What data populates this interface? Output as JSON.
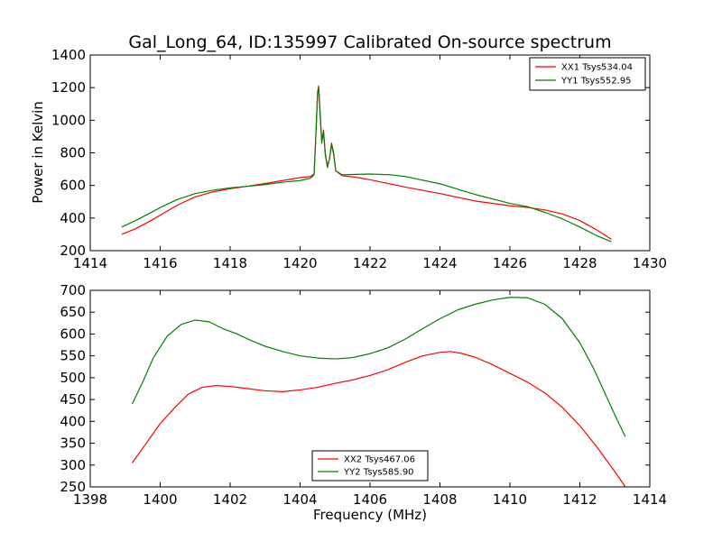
{
  "title": "Gal_Long_64, ID:135997 Calibrated On-source spectrum",
  "shared_xlabel": "Frequency (MHz)",
  "colors": {
    "red": "#ff0000",
    "green": "#008000"
  },
  "chart_data": [
    {
      "type": "line",
      "panel": "top",
      "ylabel": "Power in Kelvin",
      "xlim": [
        1414,
        1430
      ],
      "ylim": [
        200,
        1400
      ],
      "xticks": [
        "1414",
        "1416",
        "1418",
        "1420",
        "1422",
        "1424",
        "1426",
        "1428",
        "1430"
      ],
      "yticks": [
        "200",
        "400",
        "600",
        "800",
        "1000",
        "1200",
        "1400"
      ],
      "legend_position": "top-right",
      "series": [
        {
          "name": "XX1 Tsys534.04",
          "color": "#ff0000",
          "points": [
            [
              1414.9,
              300
            ],
            [
              1415.3,
              335
            ],
            [
              1415.7,
              380
            ],
            [
              1416.1,
              430
            ],
            [
              1416.5,
              480
            ],
            [
              1417.0,
              530
            ],
            [
              1417.5,
              560
            ],
            [
              1418.0,
              580
            ],
            [
              1418.5,
              595
            ],
            [
              1419.0,
              612
            ],
            [
              1419.5,
              630
            ],
            [
              1420.0,
              648
            ],
            [
              1420.3,
              655
            ],
            [
              1420.4,
              670
            ],
            [
              1420.45,
              900
            ],
            [
              1420.5,
              1170
            ],
            [
              1420.53,
              1210
            ],
            [
              1420.57,
              1060
            ],
            [
              1420.62,
              870
            ],
            [
              1420.67,
              940
            ],
            [
              1420.72,
              800
            ],
            [
              1420.78,
              720
            ],
            [
              1420.84,
              760
            ],
            [
              1420.9,
              860
            ],
            [
              1420.96,
              800
            ],
            [
              1421.02,
              690
            ],
            [
              1421.2,
              660
            ],
            [
              1421.6,
              650
            ],
            [
              1422.0,
              635
            ],
            [
              1423.0,
              590
            ],
            [
              1424.0,
              550
            ],
            [
              1425.0,
              505
            ],
            [
              1426.0,
              475
            ],
            [
              1426.5,
              465
            ],
            [
              1427.0,
              450
            ],
            [
              1427.5,
              425
            ],
            [
              1428.0,
              385
            ],
            [
              1428.5,
              325
            ],
            [
              1428.9,
              270
            ]
          ]
        },
        {
          "name": "YY1 Tsys552.95",
          "color": "#008000",
          "points": [
            [
              1414.9,
              345
            ],
            [
              1415.3,
              385
            ],
            [
              1415.7,
              430
            ],
            [
              1416.1,
              475
            ],
            [
              1416.5,
              515
            ],
            [
              1417.0,
              550
            ],
            [
              1417.5,
              570
            ],
            [
              1418.0,
              585
            ],
            [
              1418.5,
              595
            ],
            [
              1419.0,
              605
            ],
            [
              1419.5,
              620
            ],
            [
              1420.0,
              630
            ],
            [
              1420.3,
              645
            ],
            [
              1420.4,
              665
            ],
            [
              1420.45,
              900
            ],
            [
              1420.5,
              1160
            ],
            [
              1420.53,
              1200
            ],
            [
              1420.57,
              1050
            ],
            [
              1420.62,
              860
            ],
            [
              1420.67,
              930
            ],
            [
              1420.72,
              790
            ],
            [
              1420.78,
              710
            ],
            [
              1420.84,
              760
            ],
            [
              1420.9,
              850
            ],
            [
              1420.96,
              790
            ],
            [
              1421.02,
              690
            ],
            [
              1421.2,
              665
            ],
            [
              1421.6,
              668
            ],
            [
              1422.0,
              670
            ],
            [
              1422.6,
              665
            ],
            [
              1423.0,
              655
            ],
            [
              1424.0,
              610
            ],
            [
              1425.0,
              545
            ],
            [
              1426.0,
              490
            ],
            [
              1426.5,
              470
            ],
            [
              1427.0,
              435
            ],
            [
              1427.5,
              395
            ],
            [
              1428.0,
              345
            ],
            [
              1428.5,
              290
            ],
            [
              1428.9,
              255
            ]
          ]
        }
      ]
    },
    {
      "type": "line",
      "panel": "bottom",
      "xlabel": "Frequency (MHz)",
      "xlim": [
        1398,
        1414
      ],
      "ylim": [
        250,
        700
      ],
      "xticks": [
        "1398",
        "1400",
        "1402",
        "1404",
        "1406",
        "1408",
        "1410",
        "1412",
        "1414"
      ],
      "yticks": [
        "250",
        "300",
        "350",
        "400",
        "450",
        "500",
        "550",
        "600",
        "650",
        "700"
      ],
      "legend_position": "bottom-center",
      "series": [
        {
          "name": "XX2 Tsys467.06",
          "color": "#ff0000",
          "points": [
            [
              1399.2,
              305
            ],
            [
              1399.6,
              350
            ],
            [
              1400.0,
              395
            ],
            [
              1400.4,
              430
            ],
            [
              1400.8,
              462
            ],
            [
              1401.2,
              478
            ],
            [
              1401.6,
              482
            ],
            [
              1402.0,
              480
            ],
            [
              1402.5,
              475
            ],
            [
              1403.0,
              470
            ],
            [
              1403.5,
              468
            ],
            [
              1404.0,
              472
            ],
            [
              1404.5,
              478
            ],
            [
              1405.0,
              487
            ],
            [
              1405.5,
              495
            ],
            [
              1406.0,
              505
            ],
            [
              1406.5,
              518
            ],
            [
              1407.0,
              535
            ],
            [
              1407.5,
              550
            ],
            [
              1408.0,
              558
            ],
            [
              1408.3,
              560
            ],
            [
              1408.6,
              556
            ],
            [
              1409.0,
              547
            ],
            [
              1409.5,
              530
            ],
            [
              1410.0,
              510
            ],
            [
              1410.5,
              490
            ],
            [
              1411.0,
              465
            ],
            [
              1411.5,
              432
            ],
            [
              1412.0,
              390
            ],
            [
              1412.5,
              340
            ],
            [
              1413.0,
              285
            ],
            [
              1413.3,
              250
            ]
          ]
        },
        {
          "name": "YY2 Tsys585.90",
          "color": "#008000",
          "points": [
            [
              1399.2,
              440
            ],
            [
              1399.5,
              490
            ],
            [
              1399.8,
              545
            ],
            [
              1400.2,
              595
            ],
            [
              1400.6,
              622
            ],
            [
              1401.0,
              632
            ],
            [
              1401.4,
              628
            ],
            [
              1401.8,
              612
            ],
            [
              1402.2,
              600
            ],
            [
              1402.6,
              585
            ],
            [
              1403.0,
              572
            ],
            [
              1403.5,
              560
            ],
            [
              1404.0,
              550
            ],
            [
              1404.5,
              545
            ],
            [
              1405.0,
              543
            ],
            [
              1405.5,
              546
            ],
            [
              1406.0,
              555
            ],
            [
              1406.5,
              568
            ],
            [
              1407.0,
              588
            ],
            [
              1407.5,
              612
            ],
            [
              1408.0,
              635
            ],
            [
              1408.5,
              655
            ],
            [
              1409.0,
              668
            ],
            [
              1409.5,
              678
            ],
            [
              1410.0,
              684
            ],
            [
              1410.5,
              683
            ],
            [
              1411.0,
              668
            ],
            [
              1411.5,
              635
            ],
            [
              1412.0,
              580
            ],
            [
              1412.4,
              520
            ],
            [
              1412.8,
              450
            ],
            [
              1413.0,
              415
            ],
            [
              1413.3,
              365
            ]
          ]
        }
      ]
    }
  ]
}
